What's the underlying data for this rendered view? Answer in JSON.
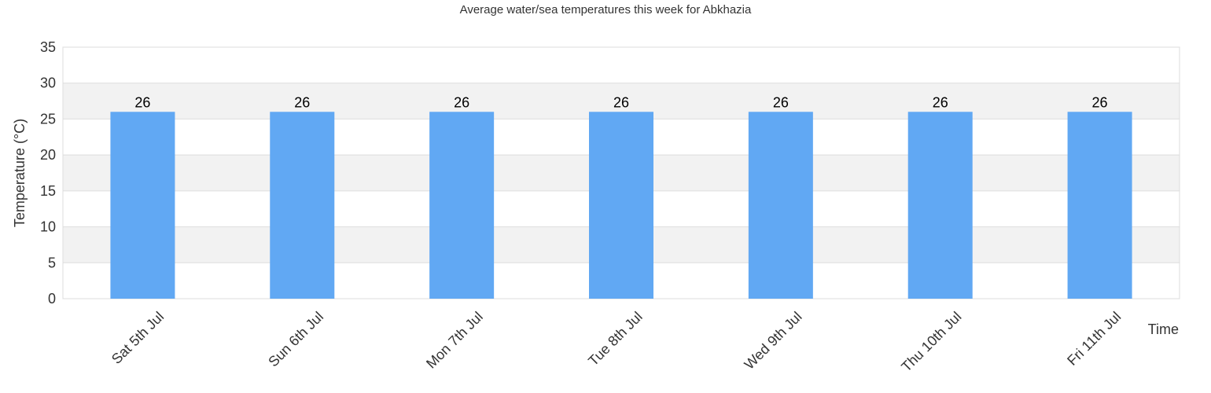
{
  "chart_data": {
    "type": "bar",
    "title": "Average water/sea temperatures this week for Abkhazia",
    "xlabel": "Time",
    "ylabel": "Temperature (°C)",
    "categories": [
      "Sat 5th Jul",
      "Sun 6th Jul",
      "Mon 7th Jul",
      "Tue 8th Jul",
      "Wed 9th Jul",
      "Thu 10th Jul",
      "Fri 11th Jul"
    ],
    "values": [
      26,
      26,
      26,
      26,
      26,
      26,
      26
    ],
    "data_labels": [
      "26",
      "26",
      "26",
      "26",
      "26",
      "26",
      "26"
    ],
    "ylim": [
      0,
      35
    ],
    "yticks": [
      0,
      5,
      10,
      15,
      20,
      25,
      30,
      35
    ],
    "grid": true,
    "legend": "none",
    "colors": {
      "bar": "#61a8f3",
      "band": "#f2f2f2",
      "grid": "#dddddd",
      "text": "#333333"
    }
  }
}
